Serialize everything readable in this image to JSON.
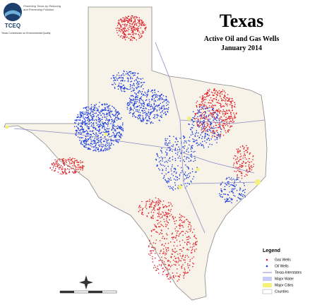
{
  "header": {
    "title": "Texas",
    "subtitle": "Active Oil and Gas Wells",
    "date": "January 2014"
  },
  "logo": {
    "name": "TCEQ",
    "tagline": "Protecting Texas by Reducing and Preventing Pollution",
    "agency": "Texas Commission on Environmental Quality"
  },
  "legend": {
    "title": "Legend",
    "items": [
      "Gas Wells",
      "Oil Wells",
      "Texas-Interstates",
      "Major Water",
      "Major Cities",
      "Counties"
    ]
  }
}
